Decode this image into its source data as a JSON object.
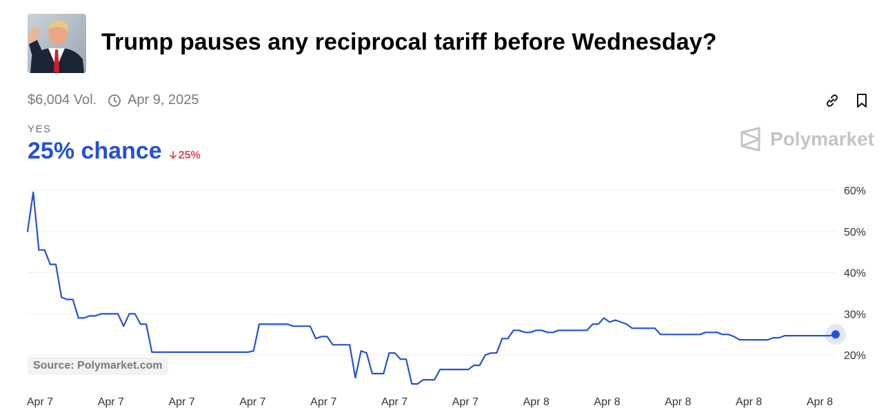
{
  "market": {
    "title": "Trump pauses any reciprocal tariff before Wednesday?",
    "volume": "$6,004 Vol.",
    "end_date": "Apr 9, 2025",
    "outcome": "YES",
    "chance": "25% chance",
    "change": "25%",
    "change_direction": "down",
    "brand": "Polymarket",
    "source": "Source: Polymarket.com"
  },
  "icons": {
    "clock": "clock-icon",
    "link": "link-icon",
    "bookmark": "bookmark-icon",
    "logo": "polymarket-logo-icon"
  },
  "colors": {
    "line": "#2250d9",
    "down": "#e5484d",
    "grid": "#eeeeee",
    "muted": "#7a7a7a"
  },
  "chart_data": {
    "type": "line",
    "title": "",
    "xlabel": "",
    "ylabel": "",
    "ylim": [
      10,
      60
    ],
    "yticks": [
      20,
      30,
      40,
      50,
      60
    ],
    "ytick_labels": [
      "20%",
      "30%",
      "40%",
      "50%",
      "60%"
    ],
    "xtick_labels": [
      "Apr 7",
      "Apr 7",
      "Apr 7",
      "Apr 7",
      "Apr 7",
      "Apr 7",
      "Apr 7",
      "Apr 8",
      "Apr 8",
      "Apr 8",
      "Apr 8",
      "Apr 8"
    ],
    "grid": true,
    "series": [
      {
        "values": [
          50,
          59.5,
          45.5,
          45.5,
          42,
          42,
          34,
          33.5,
          33.5,
          29,
          29,
          29.5,
          29.5,
          30,
          30,
          30,
          30,
          27,
          30,
          30,
          27.5,
          27.5,
          20.7,
          20.7,
          20.7,
          20.7,
          20.7,
          20.7,
          20.7,
          20.7,
          20.7,
          20.7,
          20.7,
          20.7,
          20.7,
          20.7,
          20.7,
          20.7,
          20.7,
          20.7,
          21,
          27.5,
          27.5,
          27.5,
          27.5,
          27.5,
          27.5,
          27,
          27,
          27,
          27,
          24,
          24.5,
          24.5,
          22.5,
          22.5,
          22.5,
          22.5,
          14.5,
          21,
          20.5,
          15.5,
          15.5,
          15.5,
          20.5,
          20.5,
          19,
          19,
          13,
          13,
          14,
          14,
          14,
          16.5,
          16.5,
          16.5,
          16.5,
          16.5,
          16.5,
          17.5,
          17.5,
          20,
          20.5,
          20.5,
          24,
          24,
          26,
          26,
          25.5,
          25.5,
          26,
          26,
          25.5,
          25.5,
          26,
          26,
          26,
          26,
          26,
          26,
          27.5,
          27.5,
          29,
          28,
          28.5,
          28,
          27.5,
          26.5,
          26.5,
          26.5,
          26.5,
          26.5,
          25,
          25,
          25,
          25,
          25,
          25,
          25,
          25,
          25.5,
          25.5,
          25.5,
          25,
          25,
          24.5,
          23.7,
          23.7,
          23.7,
          23.7,
          23.7,
          23.7,
          24.2,
          24.2,
          24.7,
          24.7,
          24.7,
          24.7,
          24.7,
          24.7,
          24.7,
          24.7,
          24.7,
          25
        ]
      }
    ]
  }
}
